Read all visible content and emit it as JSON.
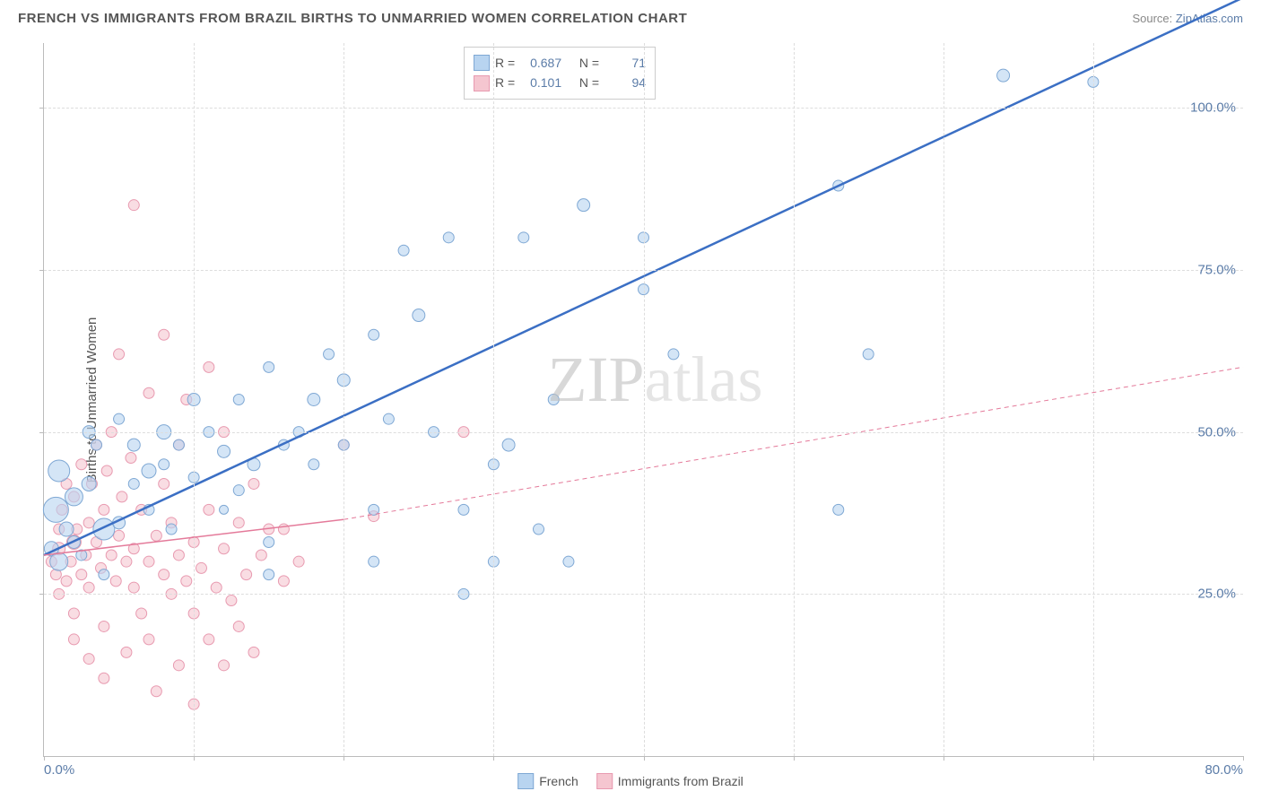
{
  "header": {
    "title": "FRENCH VS IMMIGRANTS FROM BRAZIL BIRTHS TO UNMARRIED WOMEN CORRELATION CHART",
    "source_prefix": "Source: ",
    "source_name": "ZipAtlas.com"
  },
  "chart": {
    "type": "scatter",
    "ylabel": "Births to Unmarried Women",
    "xlim": [
      0,
      80
    ],
    "ylim": [
      0,
      110
    ],
    "x_ticks": [
      0,
      10,
      20,
      30,
      40,
      50,
      60,
      70,
      80
    ],
    "x_tick_labels": {
      "0": "0.0%",
      "80": "80.0%"
    },
    "y_ticks": [
      25,
      50,
      75,
      100
    ],
    "y_tick_labels": {
      "25": "25.0%",
      "50": "50.0%",
      "75": "75.0%",
      "100": "100.0%"
    },
    "background_color": "#ffffff",
    "grid_color": "#dddddd",
    "axis_color": "#bbbbbb",
    "label_color": "#5b7ca8",
    "watermark": "ZIPatlas",
    "series": [
      {
        "name": "French",
        "fill": "#b8d4f0",
        "stroke": "#7fa8d4",
        "line_color": "#3b6fc4",
        "line_style": "solid",
        "line_width": 2.5,
        "r_label": "R =",
        "r_value": "0.687",
        "n_label": "N =",
        "n_value": "71",
        "fit": {
          "x1": 0,
          "y1": 31,
          "x2": 70,
          "y2": 106,
          "extend_x": 80,
          "extend_y": 117
        },
        "points": [
          [
            0.5,
            32,
            8
          ],
          [
            0.8,
            38,
            14
          ],
          [
            1,
            44,
            12
          ],
          [
            1,
            30,
            10
          ],
          [
            1.5,
            35,
            8
          ],
          [
            2,
            40,
            10
          ],
          [
            2,
            33,
            7
          ],
          [
            2.5,
            31,
            6
          ],
          [
            3,
            42,
            8
          ],
          [
            3,
            50,
            7
          ],
          [
            3.5,
            48,
            6
          ],
          [
            4,
            35,
            12
          ],
          [
            4,
            28,
            6
          ],
          [
            5,
            36,
            7
          ],
          [
            5,
            52,
            6
          ],
          [
            6,
            48,
            7
          ],
          [
            6,
            42,
            6
          ],
          [
            7,
            44,
            8
          ],
          [
            7,
            38,
            6
          ],
          [
            8,
            45,
            6
          ],
          [
            8,
            50,
            8
          ],
          [
            8.5,
            35,
            6
          ],
          [
            9,
            48,
            6
          ],
          [
            10,
            55,
            7
          ],
          [
            10,
            43,
            6
          ],
          [
            11,
            50,
            6
          ],
          [
            12,
            47,
            7
          ],
          [
            12,
            38,
            5
          ],
          [
            13,
            41,
            6
          ],
          [
            13,
            55,
            6
          ],
          [
            14,
            45,
            7
          ],
          [
            15,
            60,
            6
          ],
          [
            15,
            33,
            6
          ],
          [
            15,
            28,
            6
          ],
          [
            16,
            48,
            6
          ],
          [
            17,
            50,
            6
          ],
          [
            18,
            55,
            7
          ],
          [
            18,
            45,
            6
          ],
          [
            19,
            62,
            6
          ],
          [
            20,
            48,
            6
          ],
          [
            20,
            58,
            7
          ],
          [
            22,
            65,
            6
          ],
          [
            22,
            38,
            6
          ],
          [
            22,
            30,
            6
          ],
          [
            23,
            52,
            6
          ],
          [
            24,
            78,
            6
          ],
          [
            25,
            68,
            7
          ],
          [
            26,
            50,
            6
          ],
          [
            27,
            80,
            6
          ],
          [
            28,
            38,
            6
          ],
          [
            28,
            25,
            6
          ],
          [
            30,
            30,
            6
          ],
          [
            30,
            45,
            6
          ],
          [
            31,
            48,
            7
          ],
          [
            32,
            80,
            6
          ],
          [
            33,
            35,
            6
          ],
          [
            34,
            55,
            6
          ],
          [
            35,
            30,
            6
          ],
          [
            36,
            85,
            7
          ],
          [
            38,
            104,
            7
          ],
          [
            40,
            104,
            6
          ],
          [
            40,
            72,
            6
          ],
          [
            40,
            80,
            6
          ],
          [
            42,
            62,
            6
          ],
          [
            53,
            88,
            6
          ],
          [
            53,
            38,
            6
          ],
          [
            55,
            62,
            6
          ],
          [
            64,
            105,
            7
          ],
          [
            70,
            104,
            6
          ]
        ]
      },
      {
        "name": "Immigrants from Brazil",
        "fill": "#f5c6d0",
        "stroke": "#e89ab0",
        "line_color": "#e47a9a",
        "line_style": "solid_then_dashed",
        "line_width": 1.5,
        "r_label": "R =",
        "r_value": "0.101",
        "n_label": "N =",
        "n_value": "94",
        "fit": {
          "x1": 0,
          "y1": 31,
          "x2_solid": 20,
          "y2_solid": 36.5,
          "x2": 80,
          "y2": 60
        },
        "points": [
          [
            0.5,
            30,
            6
          ],
          [
            0.8,
            28,
            6
          ],
          [
            1,
            32,
            7
          ],
          [
            1,
            35,
            6
          ],
          [
            1,
            25,
            6
          ],
          [
            1.2,
            38,
            6
          ],
          [
            1.5,
            27,
            6
          ],
          [
            1.5,
            42,
            6
          ],
          [
            1.8,
            30,
            6
          ],
          [
            2,
            33,
            8
          ],
          [
            2,
            40,
            6
          ],
          [
            2,
            22,
            6
          ],
          [
            2,
            18,
            6
          ],
          [
            2.2,
            35,
            6
          ],
          [
            2.5,
            28,
            6
          ],
          [
            2.5,
            45,
            6
          ],
          [
            2.8,
            31,
            6
          ],
          [
            3,
            36,
            6
          ],
          [
            3,
            26,
            6
          ],
          [
            3,
            15,
            6
          ],
          [
            3.2,
            42,
            6
          ],
          [
            3.5,
            33,
            6
          ],
          [
            3.5,
            48,
            6
          ],
          [
            3.8,
            29,
            6
          ],
          [
            4,
            38,
            6
          ],
          [
            4,
            20,
            6
          ],
          [
            4,
            12,
            6
          ],
          [
            4.2,
            44,
            6
          ],
          [
            4.5,
            31,
            6
          ],
          [
            4.5,
            50,
            6
          ],
          [
            4.8,
            27,
            6
          ],
          [
            5,
            34,
            6
          ],
          [
            5,
            62,
            6
          ],
          [
            5.2,
            40,
            6
          ],
          [
            5.5,
            30,
            6
          ],
          [
            5.5,
            16,
            6
          ],
          [
            5.8,
            46,
            6
          ],
          [
            6,
            32,
            6
          ],
          [
            6,
            26,
            6
          ],
          [
            6,
            85,
            6
          ],
          [
            6.5,
            38,
            6
          ],
          [
            6.5,
            22,
            6
          ],
          [
            7,
            30,
            6
          ],
          [
            7,
            56,
            6
          ],
          [
            7,
            18,
            6
          ],
          [
            7.5,
            34,
            6
          ],
          [
            7.5,
            10,
            6
          ],
          [
            8,
            28,
            6
          ],
          [
            8,
            42,
            6
          ],
          [
            8,
            65,
            6
          ],
          [
            8.5,
            25,
            6
          ],
          [
            8.5,
            36,
            6
          ],
          [
            9,
            31,
            6
          ],
          [
            9,
            14,
            6
          ],
          [
            9,
            48,
            6
          ],
          [
            9.5,
            27,
            6
          ],
          [
            9.5,
            55,
            6
          ],
          [
            10,
            33,
            6
          ],
          [
            10,
            22,
            6
          ],
          [
            10,
            8,
            6
          ],
          [
            10.5,
            29,
            6
          ],
          [
            11,
            38,
            6
          ],
          [
            11,
            18,
            6
          ],
          [
            11,
            60,
            6
          ],
          [
            11.5,
            26,
            6
          ],
          [
            12,
            32,
            6
          ],
          [
            12,
            50,
            6
          ],
          [
            12,
            14,
            6
          ],
          [
            12.5,
            24,
            6
          ],
          [
            13,
            36,
            6
          ],
          [
            13,
            20,
            6
          ],
          [
            13.5,
            28,
            6
          ],
          [
            14,
            42,
            6
          ],
          [
            14,
            16,
            6
          ],
          [
            14.5,
            31,
            6
          ],
          [
            15,
            35,
            6
          ],
          [
            16,
            27,
            6
          ],
          [
            16,
            35,
            6
          ],
          [
            17,
            30,
            6
          ],
          [
            20,
            48,
            6
          ],
          [
            22,
            37,
            6
          ],
          [
            28,
            50,
            6
          ]
        ]
      }
    ]
  },
  "bottom_legend": {
    "series1": "French",
    "series2": "Immigrants from Brazil"
  }
}
